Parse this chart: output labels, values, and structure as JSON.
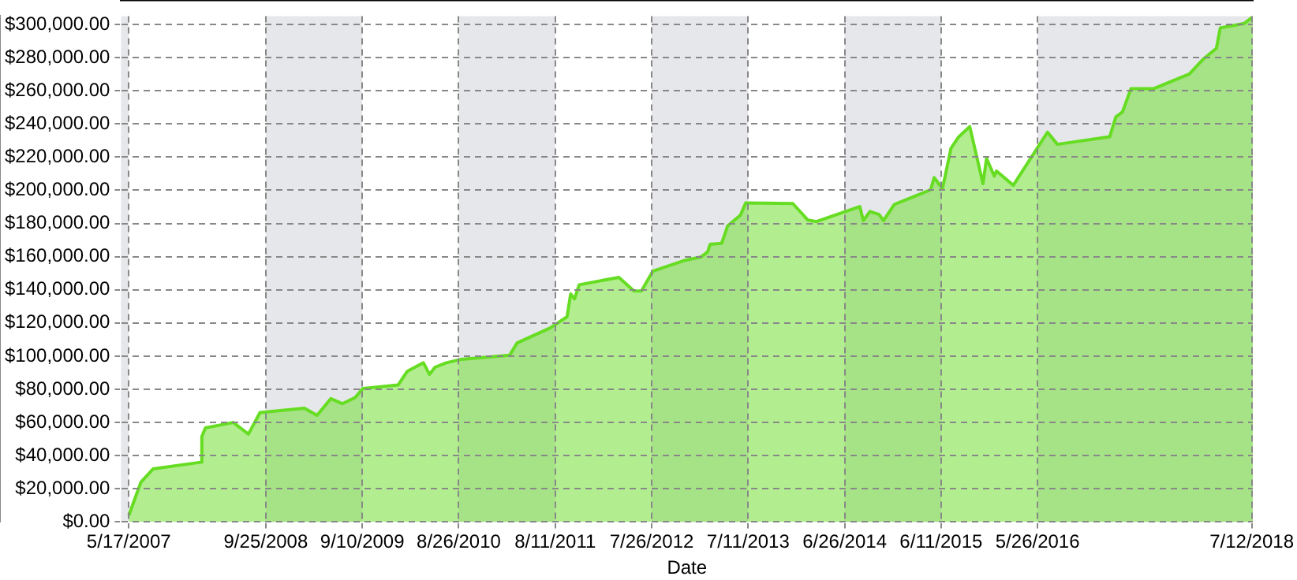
{
  "chart_data": {
    "type": "area",
    "xlabel": "Date",
    "x": [
      "2007-05-17",
      "2007-06-30",
      "2007-08-13",
      "2008-02-01",
      "2008-02-06",
      "2008-02-19",
      "2008-05-30",
      "2008-07-24",
      "2008-09-04",
      "2009-02-12",
      "2009-03-30",
      "2009-05-19",
      "2009-06-30",
      "2009-08-15",
      "2009-09-12",
      "2010-01-18",
      "2010-02-20",
      "2010-04-20",
      "2010-05-12",
      "2010-06-01",
      "2010-07-12",
      "2010-09-05",
      "2010-12-06",
      "2011-02-27",
      "2011-03-26",
      "2011-07-24",
      "2011-09-23",
      "2011-10-06",
      "2011-10-20",
      "2011-11-06",
      "2012-03-29",
      "2012-05-23",
      "2012-06-19",
      "2012-07-30",
      "2012-11-23",
      "2013-01-21",
      "2013-02-14",
      "2013-02-23",
      "2013-04-06",
      "2013-04-28",
      "2013-06-13",
      "2013-07-02",
      "2013-12-20",
      "2014-02-13",
      "2014-03-16",
      "2014-08-20",
      "2014-09-02",
      "2014-09-26",
      "2014-10-29",
      "2014-11-14",
      "2014-12-23",
      "2015-05-04",
      "2015-05-17",
      "2015-06-16",
      "2015-07-17",
      "2015-08-13",
      "2015-09-23",
      "2015-11-10",
      "2015-11-23",
      "2015-12-21",
      "2015-12-29",
      "2016-02-28",
      "2016-07-01",
      "2016-08-06",
      "2017-02-12",
      "2017-03-06",
      "2017-03-30",
      "2017-04-30",
      "2017-07-22",
      "2017-11-28",
      "2018-01-18",
      "2018-03-06",
      "2018-03-20",
      "2018-06-15",
      "2018-07-16"
    ],
    "series": [
      {
        "color": "#66dd22",
        "values": [
          4000,
          24000,
          32000,
          36000,
          51500,
          56700,
          60000,
          53000,
          66000,
          68600,
          64300,
          74400,
          71300,
          75000,
          80500,
          82600,
          90800,
          96000,
          89000,
          93300,
          96000,
          98100,
          99400,
          100600,
          108000,
          117000,
          123700,
          137500,
          134500,
          143000,
          147500,
          139300,
          139300,
          151200,
          157700,
          159800,
          162800,
          167400,
          168000,
          178600,
          185000,
          192300,
          192000,
          182000,
          181100,
          190200,
          181700,
          187200,
          185400,
          181700,
          191400,
          200300,
          207600,
          200900,
          225300,
          232000,
          238400,
          204000,
          219200,
          208500,
          211600,
          203000,
          235000,
          227700,
          232300,
          244200,
          247200,
          261300,
          261300,
          270100,
          279200,
          285600,
          297900,
          300600,
          304500
        ]
      }
    ],
    "xlim": [
      "2007-04-19",
      "2018-07-16"
    ],
    "xticks": [
      {
        "value": "2007-05-17",
        "label": "5/17/2007"
      },
      {
        "value": "2008-09-25",
        "label": "9/25/2008"
      },
      {
        "value": "2009-09-10",
        "label": "9/10/2009"
      },
      {
        "value": "2010-08-26",
        "label": "8/26/2010"
      },
      {
        "value": "2011-08-11",
        "label": "8/11/2011"
      },
      {
        "value": "2012-07-26",
        "label": "7/26/2012"
      },
      {
        "value": "2013-07-11",
        "label": "7/11/2013"
      },
      {
        "value": "2014-06-26",
        "label": "6/26/2014"
      },
      {
        "value": "2015-06-11",
        "label": "6/11/2015"
      },
      {
        "value": "2016-05-26",
        "label": "5/26/2016"
      },
      {
        "value": "2018-07-12",
        "label": "7/12/2018"
      }
    ],
    "ylim": [
      0,
      305000
    ],
    "yticks": [
      {
        "value": 0,
        "label": "$0.00"
      },
      {
        "value": 20000,
        "label": "$20,000.00"
      },
      {
        "value": 40000,
        "label": "$40,000.00"
      },
      {
        "value": 60000,
        "label": "$60,000.00"
      },
      {
        "value": 80000,
        "label": "$80,000.00"
      },
      {
        "value": 100000,
        "label": "$100,000.00"
      },
      {
        "value": 120000,
        "label": "$120,000.00"
      },
      {
        "value": 140000,
        "label": "$140,000.00"
      },
      {
        "value": 160000,
        "label": "$160,000.00"
      },
      {
        "value": 180000,
        "label": "$180,000.00"
      },
      {
        "value": 200000,
        "label": "$200,000.00"
      },
      {
        "value": 220000,
        "label": "$220,000.00"
      },
      {
        "value": 240000,
        "label": "$240,000.00"
      },
      {
        "value": 260000,
        "label": "$260,000.00"
      },
      {
        "value": 280000,
        "label": "$280,000.00"
      },
      {
        "value": 300000,
        "label": "$300,000.00"
      }
    ],
    "bands": [
      {
        "axis": "x",
        "from": "2007-04-19",
        "to": "2007-05-17",
        "color": "#e6e7ea"
      },
      {
        "axis": "x",
        "from": "2008-09-25",
        "to": "2009-09-10",
        "color": "#e6e7ea"
      },
      {
        "axis": "x",
        "from": "2010-08-26",
        "to": "2011-08-11",
        "color": "#e6e7ea"
      },
      {
        "axis": "x",
        "from": "2012-07-26",
        "to": "2013-07-11",
        "color": "#e6e7ea"
      },
      {
        "axis": "x",
        "from": "2014-06-26",
        "to": "2015-06-11",
        "color": "#e6e7ea"
      },
      {
        "axis": "x",
        "from": "2016-05-26",
        "to": "2018-07-16",
        "color": "#e6e7ea"
      }
    ],
    "grid": true,
    "legend": false,
    "marker": "none",
    "line_style": "solid"
  }
}
